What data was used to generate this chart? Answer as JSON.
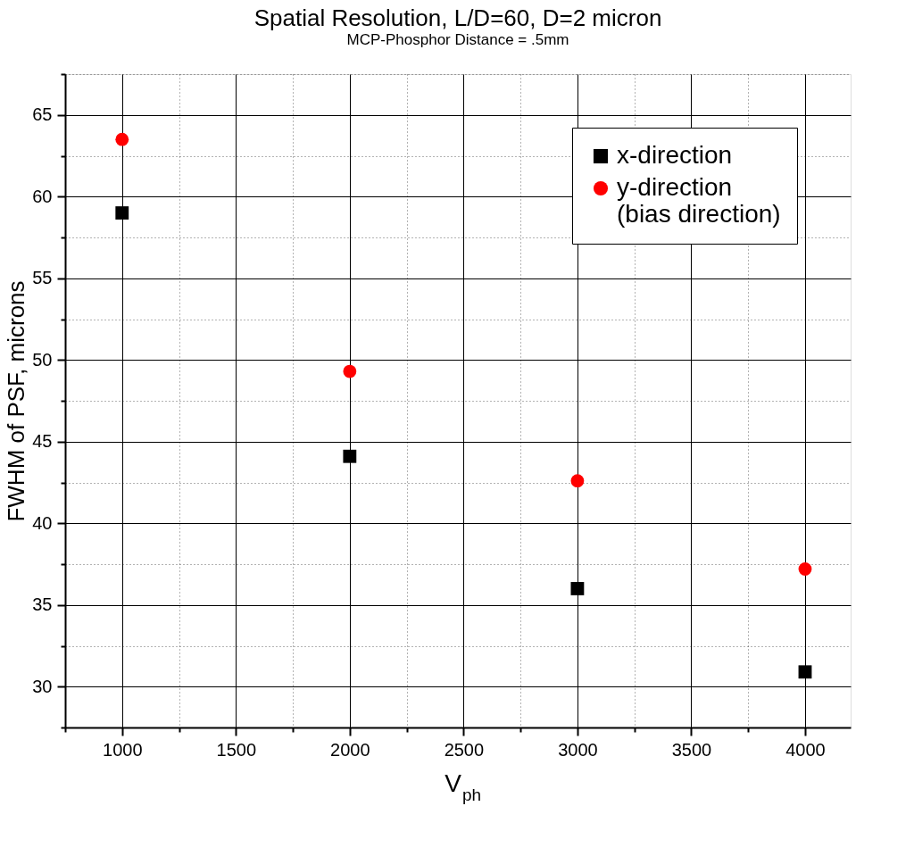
{
  "chart_data": {
    "type": "scatter",
    "title": "Spatial Resolution, L/D=60, D=2 micron",
    "subtitle": "MCP-Phosphor Distance = .5mm",
    "xlabel": "V$_{ph}$",
    "ylabel": "FWHM of PSF, microns",
    "x": [
      1000,
      2000,
      3000,
      4000
    ],
    "series": [
      {
        "name": "x-direction",
        "color": "#000000",
        "marker": "square",
        "values": [
          59.0,
          44.1,
          36.0,
          30.9
        ]
      },
      {
        "name": "y-direction\n(bias direction)",
        "color": "#ff0000",
        "marker": "circle",
        "values": [
          63.5,
          49.3,
          42.6,
          37.2
        ]
      }
    ],
    "xlim": [
      750,
      4200
    ],
    "xticks": [
      {
        "value": 750,
        "label": null
      },
      1000,
      {
        "value": 1250,
        "label": null
      },
      1500,
      {
        "value": 1750,
        "label": null
      },
      2000,
      {
        "value": 2250,
        "label": null
      },
      2500,
      {
        "value": 2750,
        "label": null
      },
      3000,
      {
        "value": 3250,
        "label": null
      },
      3500,
      {
        "value": 3750,
        "label": null
      },
      4000
    ],
    "ylim": [
      27.5,
      67.5
    ],
    "yticks": [
      {
        "value": 27.5,
        "label": null
      },
      30,
      {
        "value": 32.5,
        "label": null
      },
      35,
      {
        "value": 37.5,
        "label": null
      },
      40,
      {
        "value": 42.5,
        "label": null
      },
      45,
      {
        "value": 47.5,
        "label": null
      },
      50,
      {
        "value": 52.5,
        "label": null
      },
      55,
      {
        "value": 57.5,
        "label": null
      },
      60,
      {
        "value": 62.5,
        "label": null
      },
      65,
      {
        "value": 67.5,
        "label": null
      }
    ],
    "grid": true,
    "legend": "top right"
  }
}
